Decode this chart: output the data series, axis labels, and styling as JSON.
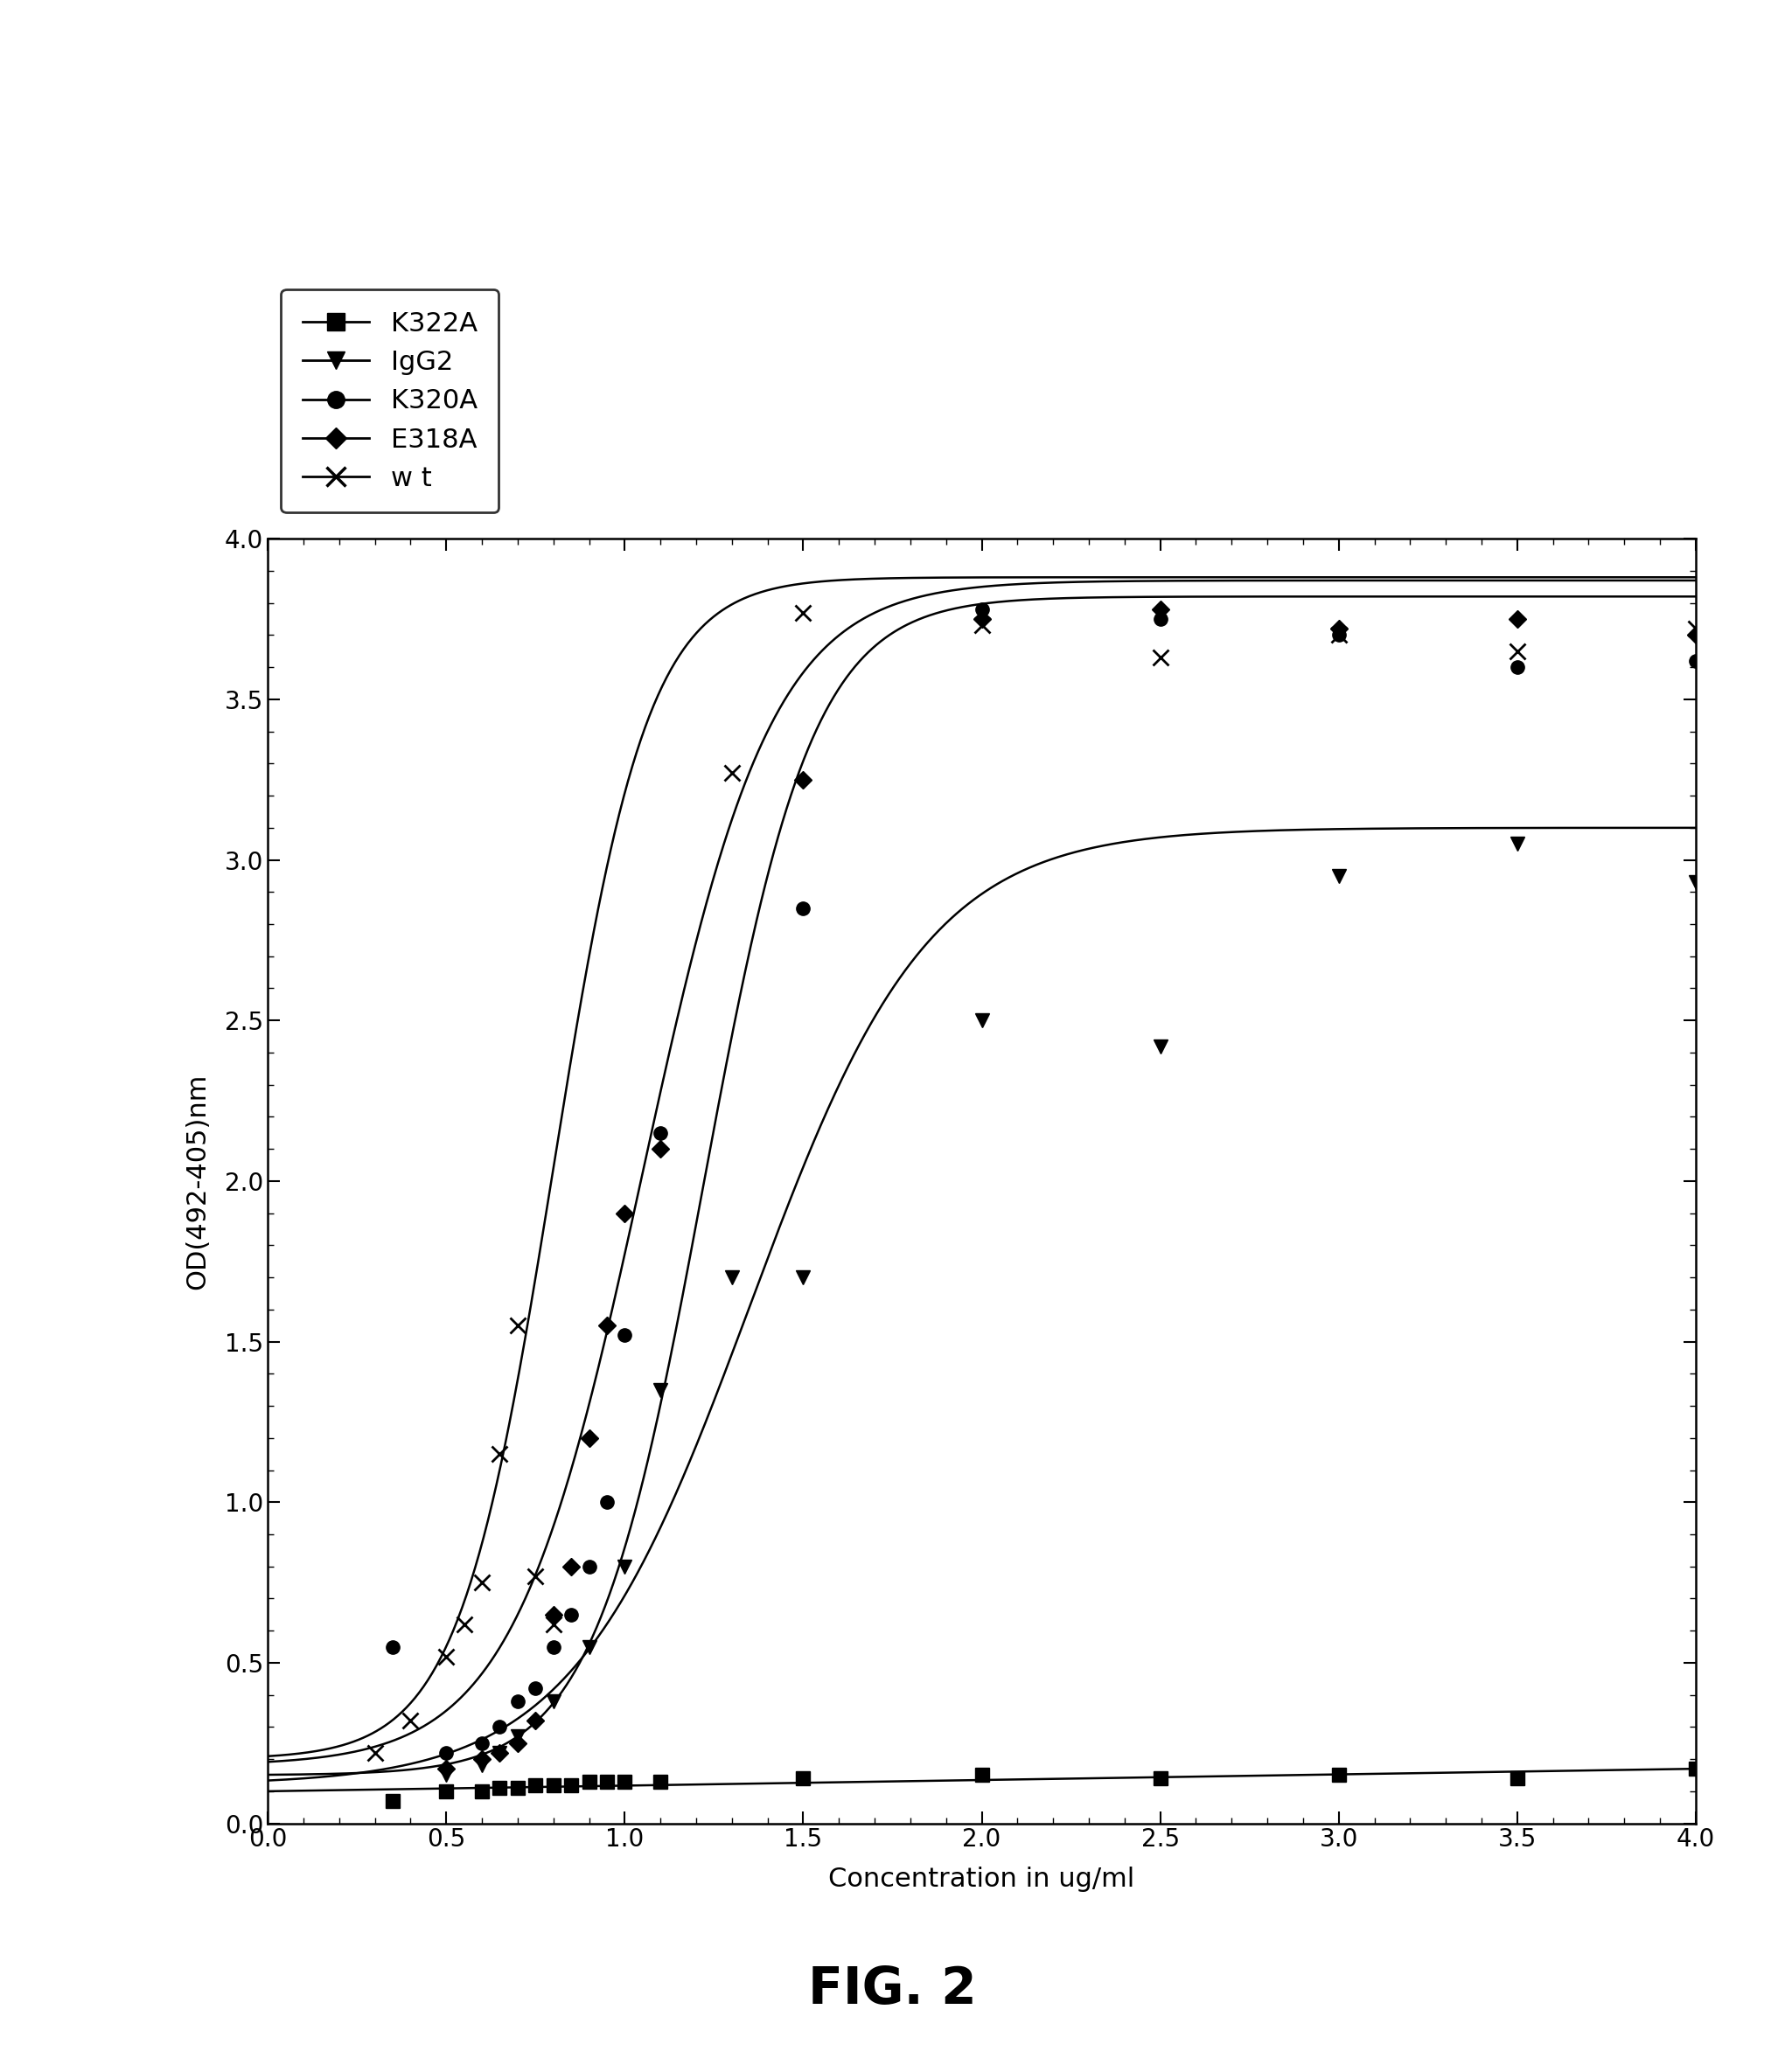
{
  "title": "FIG. 2",
  "xlabel": "Concentration in ug/ml",
  "ylabel": "OD(492-405)nm",
  "xlim": [
    0,
    4
  ],
  "ylim": [
    0,
    4
  ],
  "xticks": [
    0,
    0.5,
    1,
    1.5,
    2,
    2.5,
    3,
    3.5,
    4
  ],
  "yticks": [
    0,
    0.5,
    1,
    1.5,
    2,
    2.5,
    3,
    3.5,
    4
  ],
  "series": {
    "K322A": {
      "scatter_x": [
        0.35,
        0.5,
        0.6,
        0.65,
        0.7,
        0.75,
        0.8,
        0.85,
        0.9,
        0.95,
        1.0,
        1.1,
        1.5,
        2.0,
        2.5,
        3.0,
        3.5,
        4.0
      ],
      "scatter_y": [
        0.07,
        0.1,
        0.1,
        0.11,
        0.11,
        0.12,
        0.12,
        0.12,
        0.13,
        0.13,
        0.13,
        0.13,
        0.14,
        0.15,
        0.14,
        0.15,
        0.14,
        0.17
      ],
      "curve_midpoint": 5.0,
      "curve_max": 0.2,
      "curve_min": 0.1,
      "curve_steepness": 2.0,
      "marker": "s",
      "color": "black",
      "label": "K322A"
    },
    "IgG2": {
      "scatter_x": [
        0.5,
        0.6,
        0.65,
        0.7,
        0.8,
        0.9,
        1.0,
        1.1,
        1.3,
        1.5,
        2.0,
        2.5,
        3.0,
        3.5,
        4.0
      ],
      "scatter_y": [
        0.15,
        0.18,
        0.22,
        0.27,
        0.38,
        0.55,
        0.8,
        1.35,
        1.7,
        1.7,
        2.5,
        2.42,
        2.95,
        3.05,
        2.93
      ],
      "curve_midpoint": 1.35,
      "curve_max": 3.1,
      "curve_min": 0.12,
      "curve_steepness": 4.0,
      "marker": "v",
      "color": "black",
      "label": "IgG2"
    },
    "K320A": {
      "scatter_x": [
        0.35,
        0.5,
        0.6,
        0.65,
        0.7,
        0.75,
        0.8,
        0.85,
        0.9,
        0.95,
        1.0,
        1.1,
        1.5,
        2.0,
        2.5,
        3.0,
        3.5,
        4.0
      ],
      "scatter_y": [
        0.55,
        0.22,
        0.25,
        0.3,
        0.38,
        0.42,
        0.55,
        0.65,
        0.8,
        1.0,
        1.52,
        2.15,
        2.85,
        3.78,
        3.75,
        3.7,
        3.6,
        3.62
      ],
      "curve_midpoint": 1.05,
      "curve_max": 3.87,
      "curve_min": 0.18,
      "curve_steepness": 5.5,
      "marker": "o",
      "color": "black",
      "label": "K320A"
    },
    "E318A": {
      "scatter_x": [
        0.5,
        0.6,
        0.65,
        0.7,
        0.75,
        0.8,
        0.85,
        0.9,
        0.95,
        1.0,
        1.1,
        1.5,
        2.0,
        2.5,
        3.0,
        3.5,
        4.0
      ],
      "scatter_y": [
        0.17,
        0.2,
        0.22,
        0.25,
        0.32,
        0.65,
        0.8,
        1.2,
        1.55,
        1.9,
        2.1,
        3.25,
        3.75,
        3.78,
        3.72,
        3.75,
        3.7
      ],
      "curve_midpoint": 1.22,
      "curve_max": 3.82,
      "curve_min": 0.15,
      "curve_steepness": 6.5,
      "marker": "D",
      "color": "black",
      "label": "E318A"
    },
    "wt": {
      "scatter_x": [
        0.3,
        0.4,
        0.5,
        0.55,
        0.6,
        0.65,
        0.7,
        0.75,
        0.8,
        1.3,
        1.5,
        2.0,
        2.5,
        3.0,
        3.5,
        4.0
      ],
      "scatter_y": [
        0.22,
        0.32,
        0.52,
        0.62,
        0.75,
        1.15,
        1.55,
        0.77,
        0.62,
        3.27,
        3.77,
        3.73,
        3.63,
        3.7,
        3.65,
        3.72
      ],
      "curve_midpoint": 0.8,
      "curve_max": 3.88,
      "curve_min": 0.2,
      "curve_steepness": 7.5,
      "marker": "x",
      "color": "black",
      "label": "w t"
    }
  },
  "background_color": "white",
  "font_size": 20,
  "marker_size": 11,
  "legend_fontsize": 22
}
